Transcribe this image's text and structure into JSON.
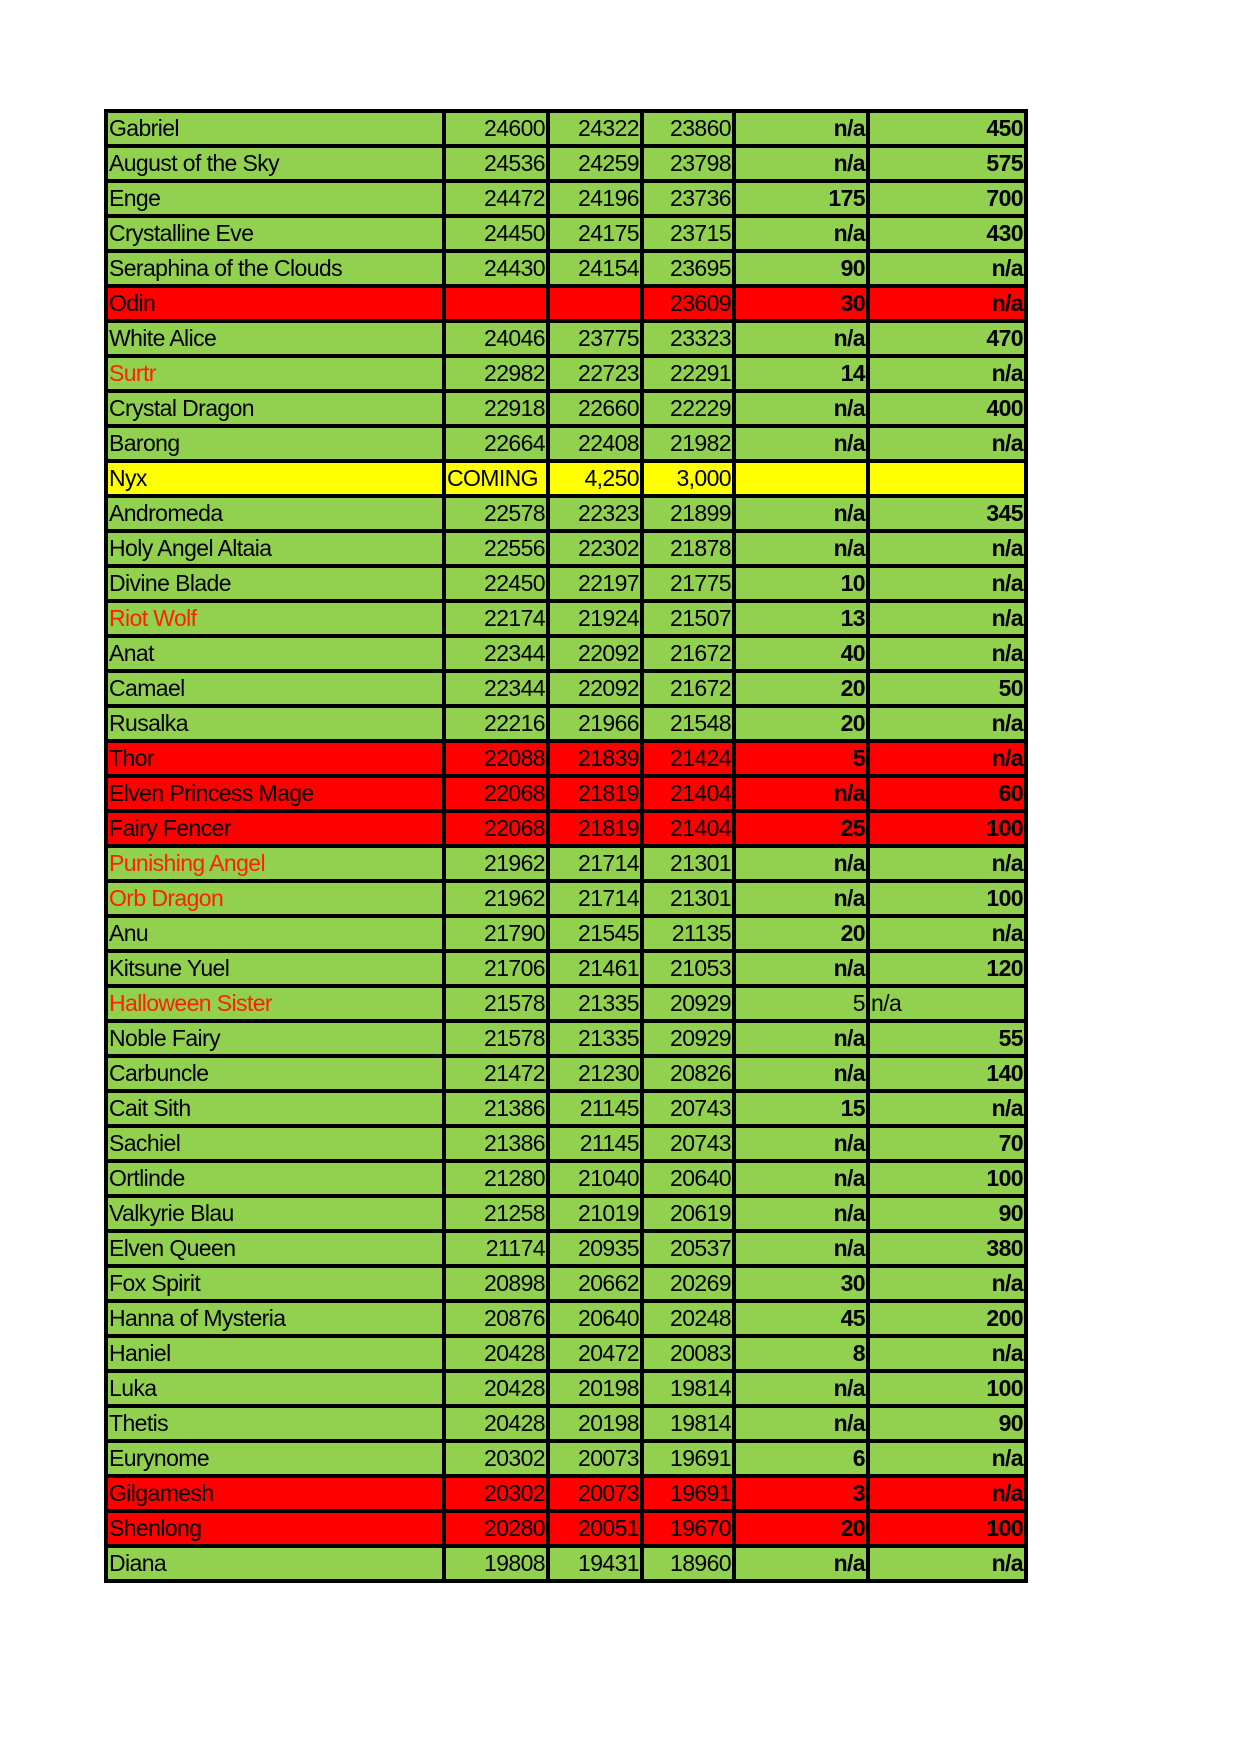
{
  "colors": {
    "green": "#92d050",
    "red": "#ff0000",
    "yellow": "#ffff00",
    "red_text": "#ff2200"
  },
  "rows": [
    {
      "name": "Gabriel",
      "c1": "24600",
      "c2": "24322",
      "c3": "23860",
      "c4": "n/a",
      "c5": "450",
      "fill": "green"
    },
    {
      "name": "August of the Sky",
      "c1": "24536",
      "c2": "24259",
      "c3": "23798",
      "c4": "n/a",
      "c5": "575",
      "fill": "green"
    },
    {
      "name": "Enge",
      "c1": "24472",
      "c2": "24196",
      "c3": "23736",
      "c4": "175",
      "c5": "700",
      "fill": "green"
    },
    {
      "name": "Crystalline Eve",
      "c1": "24450",
      "c2": "24175",
      "c3": "23715",
      "c4": "n/a",
      "c5": "430",
      "fill": "green"
    },
    {
      "name": "Seraphina of the Clouds",
      "c1": "24430",
      "c2": "24154",
      "c3": "23695",
      "c4": "90",
      "c5": "n/a",
      "fill": "green"
    },
    {
      "name": "Odin",
      "c1": "",
      "c2": "",
      "c3": "23609",
      "c4": "30",
      "c5": "n/a",
      "fill": "red"
    },
    {
      "name": "White Alice",
      "c1": "24046",
      "c2": "23775",
      "c3": "23323",
      "c4": "n/a",
      "c5": "470",
      "fill": "green"
    },
    {
      "name": "Surtr",
      "c1": "22982",
      "c2": "22723",
      "c3": "22291",
      "c4": "14",
      "c5": "n/a",
      "fill": "green",
      "red_name": true
    },
    {
      "name": "Crystal Dragon",
      "c1": "22918",
      "c2": "22660",
      "c3": "22229",
      "c4": "n/a",
      "c5": "400",
      "fill": "green"
    },
    {
      "name": "Barong",
      "c1": "22664",
      "c2": "22408",
      "c3": "21982",
      "c4": "n/a",
      "c5": "n/a",
      "fill": "green"
    },
    {
      "name": "Nyx",
      "c1": "COMING",
      "c2": "4,250",
      "c3": "3,000",
      "c4": "",
      "c5": "",
      "fill": "yellow"
    },
    {
      "name": "Andromeda",
      "c1": "22578",
      "c2": "22323",
      "c3": "21899",
      "c4": "n/a",
      "c5": "345",
      "fill": "green"
    },
    {
      "name": "Holy Angel Altaia",
      "c1": "22556",
      "c2": "22302",
      "c3": "21878",
      "c4": "n/a",
      "c5": "n/a",
      "fill": "green"
    },
    {
      "name": "Divine Blade",
      "c1": "22450",
      "c2": "22197",
      "c3": "21775",
      "c4": "10",
      "c5": "n/a",
      "fill": "green"
    },
    {
      "name": "Riot Wolf",
      "c1": "22174",
      "c2": "21924",
      "c3": "21507",
      "c4": "13",
      "c5": "n/a",
      "fill": "green",
      "red_name": true
    },
    {
      "name": "Anat",
      "c1": "22344",
      "c2": "22092",
      "c3": "21672",
      "c4": "40",
      "c5": "n/a",
      "fill": "green"
    },
    {
      "name": "Camael",
      "c1": "22344",
      "c2": "22092",
      "c3": "21672",
      "c4": "20",
      "c5": "50",
      "fill": "green"
    },
    {
      "name": "Rusalka",
      "c1": "22216",
      "c2": "21966",
      "c3": "21548",
      "c4": "20",
      "c5": "n/a",
      "fill": "green"
    },
    {
      "name": "Thor",
      "c1": "22088",
      "c2": "21839",
      "c3": "21424",
      "c4": "5",
      "c5": "n/a",
      "fill": "red"
    },
    {
      "name": "Elven Princess Mage",
      "c1": "22068",
      "c2": "21819",
      "c3": "21404",
      "c4": "n/a",
      "c5": "60",
      "fill": "red"
    },
    {
      "name": "Fairy Fencer",
      "c1": "22068",
      "c2": "21819",
      "c3": "21404",
      "c4": "25",
      "c5": "100",
      "fill": "red"
    },
    {
      "name": "Punishing Angel",
      "c1": "21962",
      "c2": "21714",
      "c3": "21301",
      "c4": "n/a",
      "c5": "n/a",
      "fill": "green",
      "red_name": true
    },
    {
      "name": "Orb Dragon",
      "c1": "21962",
      "c2": "21714",
      "c3": "21301",
      "c4": "n/a",
      "c5": "100",
      "fill": "green",
      "red_name": true
    },
    {
      "name": "Anu",
      "c1": "21790",
      "c2": "21545",
      "c3": "21135",
      "c4": "20",
      "c5": "n/a",
      "fill": "green"
    },
    {
      "name": "Kitsune Yuel",
      "c1": "21706",
      "c2": "21461",
      "c3": "21053",
      "c4": "n/a",
      "c5": "120",
      "fill": "green"
    },
    {
      "name": "Halloween Sister",
      "c1": "21578",
      "c2": "21335",
      "c3": "20929",
      "c4": "5",
      "c5": "n/a",
      "fill": "green",
      "red_name": true,
      "plain_tail": true
    },
    {
      "name": "Noble Fairy",
      "c1": "21578",
      "c2": "21335",
      "c3": "20929",
      "c4": "n/a",
      "c5": "55",
      "fill": "green"
    },
    {
      "name": "Carbuncle",
      "c1": "21472",
      "c2": "21230",
      "c3": "20826",
      "c4": "n/a",
      "c5": "140",
      "fill": "green"
    },
    {
      "name": "Cait Sith",
      "c1": "21386",
      "c2": "21145",
      "c3": "20743",
      "c4": "15",
      "c5": "n/a",
      "fill": "green"
    },
    {
      "name": "Sachiel",
      "c1": "21386",
      "c2": "21145",
      "c3": "20743",
      "c4": "n/a",
      "c5": "70",
      "fill": "green"
    },
    {
      "name": "Ortlinde",
      "c1": "21280",
      "c2": "21040",
      "c3": "20640",
      "c4": "n/a",
      "c5": "100",
      "fill": "green"
    },
    {
      "name": "Valkyrie Blau",
      "c1": "21258",
      "c2": "21019",
      "c3": "20619",
      "c4": "n/a",
      "c5": "90",
      "fill": "green"
    },
    {
      "name": "Elven Queen",
      "c1": "21174",
      "c2": "20935",
      "c3": "20537",
      "c4": "n/a",
      "c5": "380",
      "fill": "green"
    },
    {
      "name": "Fox Spirit",
      "c1": "20898",
      "c2": "20662",
      "c3": "20269",
      "c4": "30",
      "c5": "n/a",
      "fill": "green"
    },
    {
      "name": "Hanna of Mysteria",
      "c1": "20876",
      "c2": "20640",
      "c3": "20248",
      "c4": "45",
      "c5": "200",
      "fill": "green"
    },
    {
      "name": "Haniel",
      "c1": "20428",
      "c2": "20472",
      "c3": "20083",
      "c4": "8",
      "c5": "n/a",
      "fill": "green"
    },
    {
      "name": "Luka",
      "c1": "20428",
      "c2": "20198",
      "c3": "19814",
      "c4": "n/a",
      "c5": "100",
      "fill": "green"
    },
    {
      "name": "Thetis",
      "c1": "20428",
      "c2": "20198",
      "c3": "19814",
      "c4": "n/a",
      "c5": "90",
      "fill": "green"
    },
    {
      "name": "Eurynome",
      "c1": "20302",
      "c2": "20073",
      "c3": "19691",
      "c4": "6",
      "c5": "n/a",
      "fill": "green"
    },
    {
      "name": "Gilgamesh",
      "c1": "20302",
      "c2": "20073",
      "c3": "19691",
      "c4": "3",
      "c5": "n/a",
      "fill": "red"
    },
    {
      "name": "Shenlong",
      "c1": "20280",
      "c2": "20051",
      "c3": "19670",
      "c4": "20",
      "c5": "100",
      "fill": "red"
    },
    {
      "name": "Diana",
      "c1": "19808",
      "c2": "19431",
      "c3": "18960",
      "c4": "n/a",
      "c5": "n/a",
      "fill": "green"
    }
  ]
}
